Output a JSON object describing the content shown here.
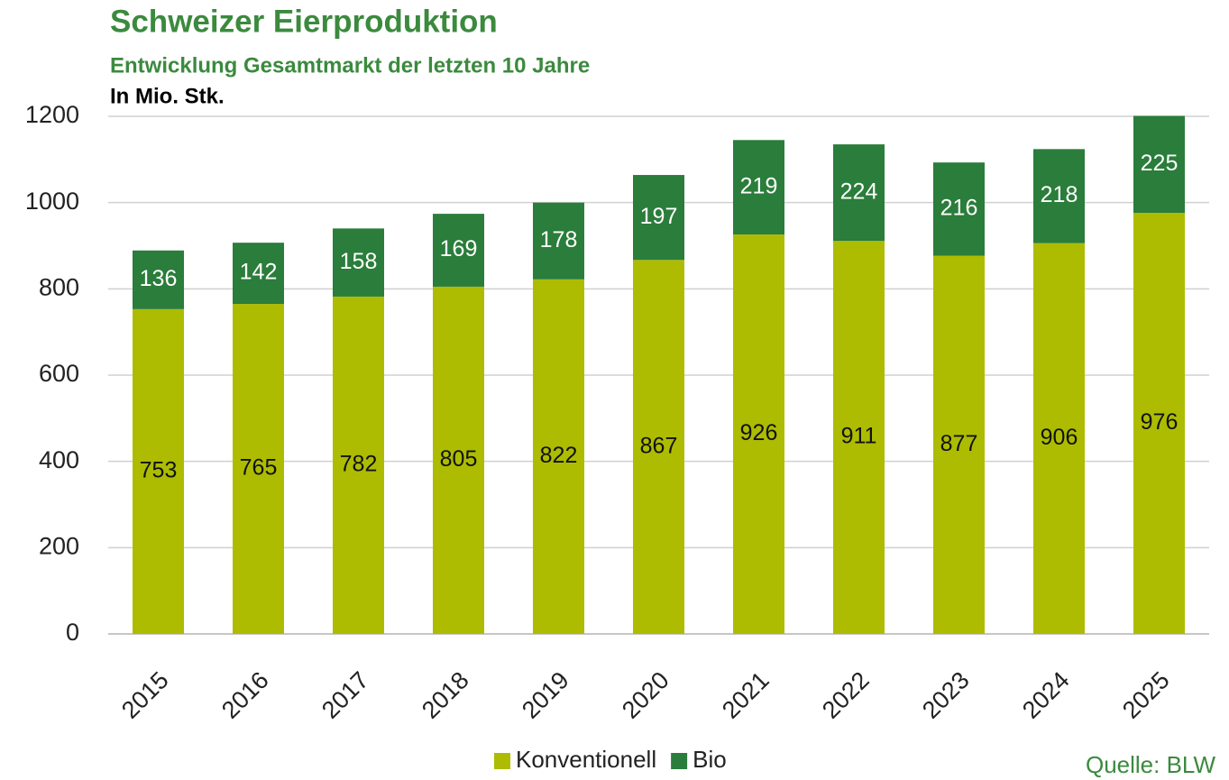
{
  "chart_data": {
    "type": "stacked_bar",
    "title": "Schweizer Eierproduktion",
    "subtitle": "Entwicklung Gesamtmarkt der letzten 10 Jahre",
    "unit_label": "In Mio. Stk.",
    "source": "Quelle: BLW",
    "categories": [
      "2015",
      "2016",
      "2017",
      "2018",
      "2019",
      "2020",
      "2021",
      "2022",
      "2023",
      "2024",
      "2025"
    ],
    "series": [
      {
        "name": "Konventionell",
        "color": "#adbc00",
        "values": [
          753,
          765,
          782,
          805,
          822,
          867,
          926,
          911,
          877,
          906,
          976
        ]
      },
      {
        "name": "Bio",
        "color": "#2a7d3a",
        "values": [
          136,
          142,
          158,
          169,
          178,
          197,
          219,
          224,
          216,
          218,
          225
        ]
      }
    ],
    "ylim": [
      0,
      1200
    ],
    "yticks": [
      0,
      200,
      400,
      600,
      800,
      1000,
      1200
    ],
    "grid": true,
    "legend": "bottom"
  }
}
